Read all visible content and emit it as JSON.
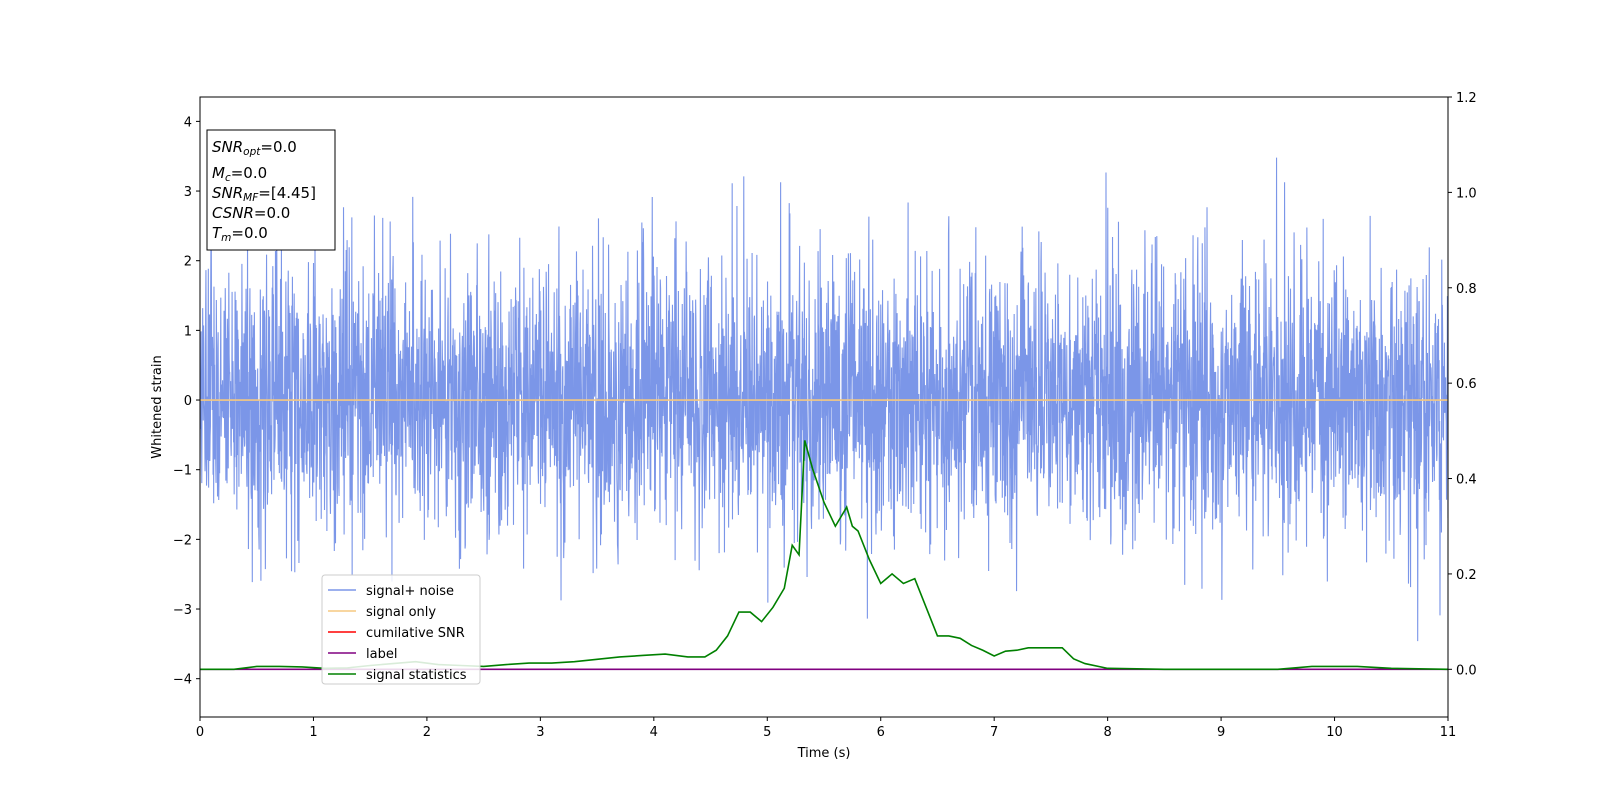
{
  "chart_data": {
    "type": "line",
    "xlabel": "Time (s)",
    "ylabel": "Whitened strain",
    "xlim": [
      0,
      11
    ],
    "ylim": [
      -4.55,
      4.35
    ],
    "y2lim": [
      -0.1,
      1.2
    ],
    "xticks": [
      0,
      1,
      2,
      3,
      4,
      5,
      6,
      7,
      8,
      9,
      10,
      11
    ],
    "yticks": [
      4,
      3,
      2,
      1,
      0,
      -1,
      -2,
      -3,
      -4
    ],
    "y2ticks": [
      "1.2",
      "1.0",
      "0.8",
      "0.6",
      "0.4",
      "0.2",
      "0.0"
    ],
    "grid": false,
    "legend_position": "lower-left",
    "info_box": [
      {
        "base": "SNR",
        "sub": "opt",
        "rest": "=0.0"
      },
      {
        "base": "M",
        "sub": "c",
        "rest": "=0.0"
      },
      {
        "base": "SNR",
        "sub": "MF",
        "rest": "=[4.45]"
      },
      {
        "base": "CSNR",
        "sub": "",
        "rest": "=0.0"
      },
      {
        "base": "T",
        "sub": "m",
        "rest": "=0.0"
      }
    ],
    "series": [
      {
        "name": "signal+ noise",
        "color": "#7b96e8",
        "kind": "noise",
        "axis": "left",
        "sigma": 1.0,
        "x_range": [
          0,
          11
        ]
      },
      {
        "name": "signal only",
        "color": "#f5c880",
        "axis": "left",
        "x": [
          0,
          11
        ],
        "y": [
          0,
          0
        ]
      },
      {
        "name": "cumilative SNR",
        "color": "#ff0000",
        "axis": "right",
        "x": [],
        "y": []
      },
      {
        "name": "label",
        "color": "#800080",
        "axis": "right",
        "x": [
          0,
          11
        ],
        "y": [
          0,
          0
        ]
      },
      {
        "name": "signal statistics",
        "color": "#008000",
        "axis": "right",
        "x": [
          0,
          0.3,
          0.5,
          0.7,
          0.9,
          1.1,
          1.3,
          1.5,
          1.7,
          1.9,
          2.1,
          2.3,
          2.5,
          2.7,
          2.9,
          3.1,
          3.3,
          3.5,
          3.7,
          3.9,
          4.1,
          4.3,
          4.45,
          4.55,
          4.65,
          4.75,
          4.85,
          4.95,
          5.05,
          5.15,
          5.22,
          5.28,
          5.33,
          5.4,
          5.5,
          5.6,
          5.7,
          5.75,
          5.8,
          5.9,
          6.0,
          6.1,
          6.2,
          6.3,
          6.4,
          6.5,
          6.6,
          6.7,
          6.8,
          6.9,
          7.0,
          7.1,
          7.2,
          7.3,
          7.4,
          7.6,
          7.7,
          7.8,
          8.0,
          8.5,
          9.0,
          9.5,
          9.8,
          10.0,
          10.2,
          10.5,
          11
        ],
        "y": [
          0.0,
          0.0,
          0.006,
          0.006,
          0.005,
          0.002,
          0.003,
          0.008,
          0.012,
          0.016,
          0.01,
          0.008,
          0.006,
          0.01,
          0.013,
          0.013,
          0.016,
          0.021,
          0.026,
          0.029,
          0.032,
          0.026,
          0.026,
          0.04,
          0.07,
          0.12,
          0.12,
          0.1,
          0.13,
          0.17,
          0.26,
          0.24,
          0.48,
          0.42,
          0.35,
          0.3,
          0.34,
          0.3,
          0.29,
          0.23,
          0.18,
          0.2,
          0.18,
          0.19,
          0.13,
          0.07,
          0.07,
          0.065,
          0.05,
          0.04,
          0.028,
          0.038,
          0.04,
          0.045,
          0.045,
          0.045,
          0.022,
          0.012,
          0.002,
          0.0,
          0.0,
          0.0,
          0.006,
          0.006,
          0.006,
          0.002,
          0.0
        ]
      }
    ]
  }
}
